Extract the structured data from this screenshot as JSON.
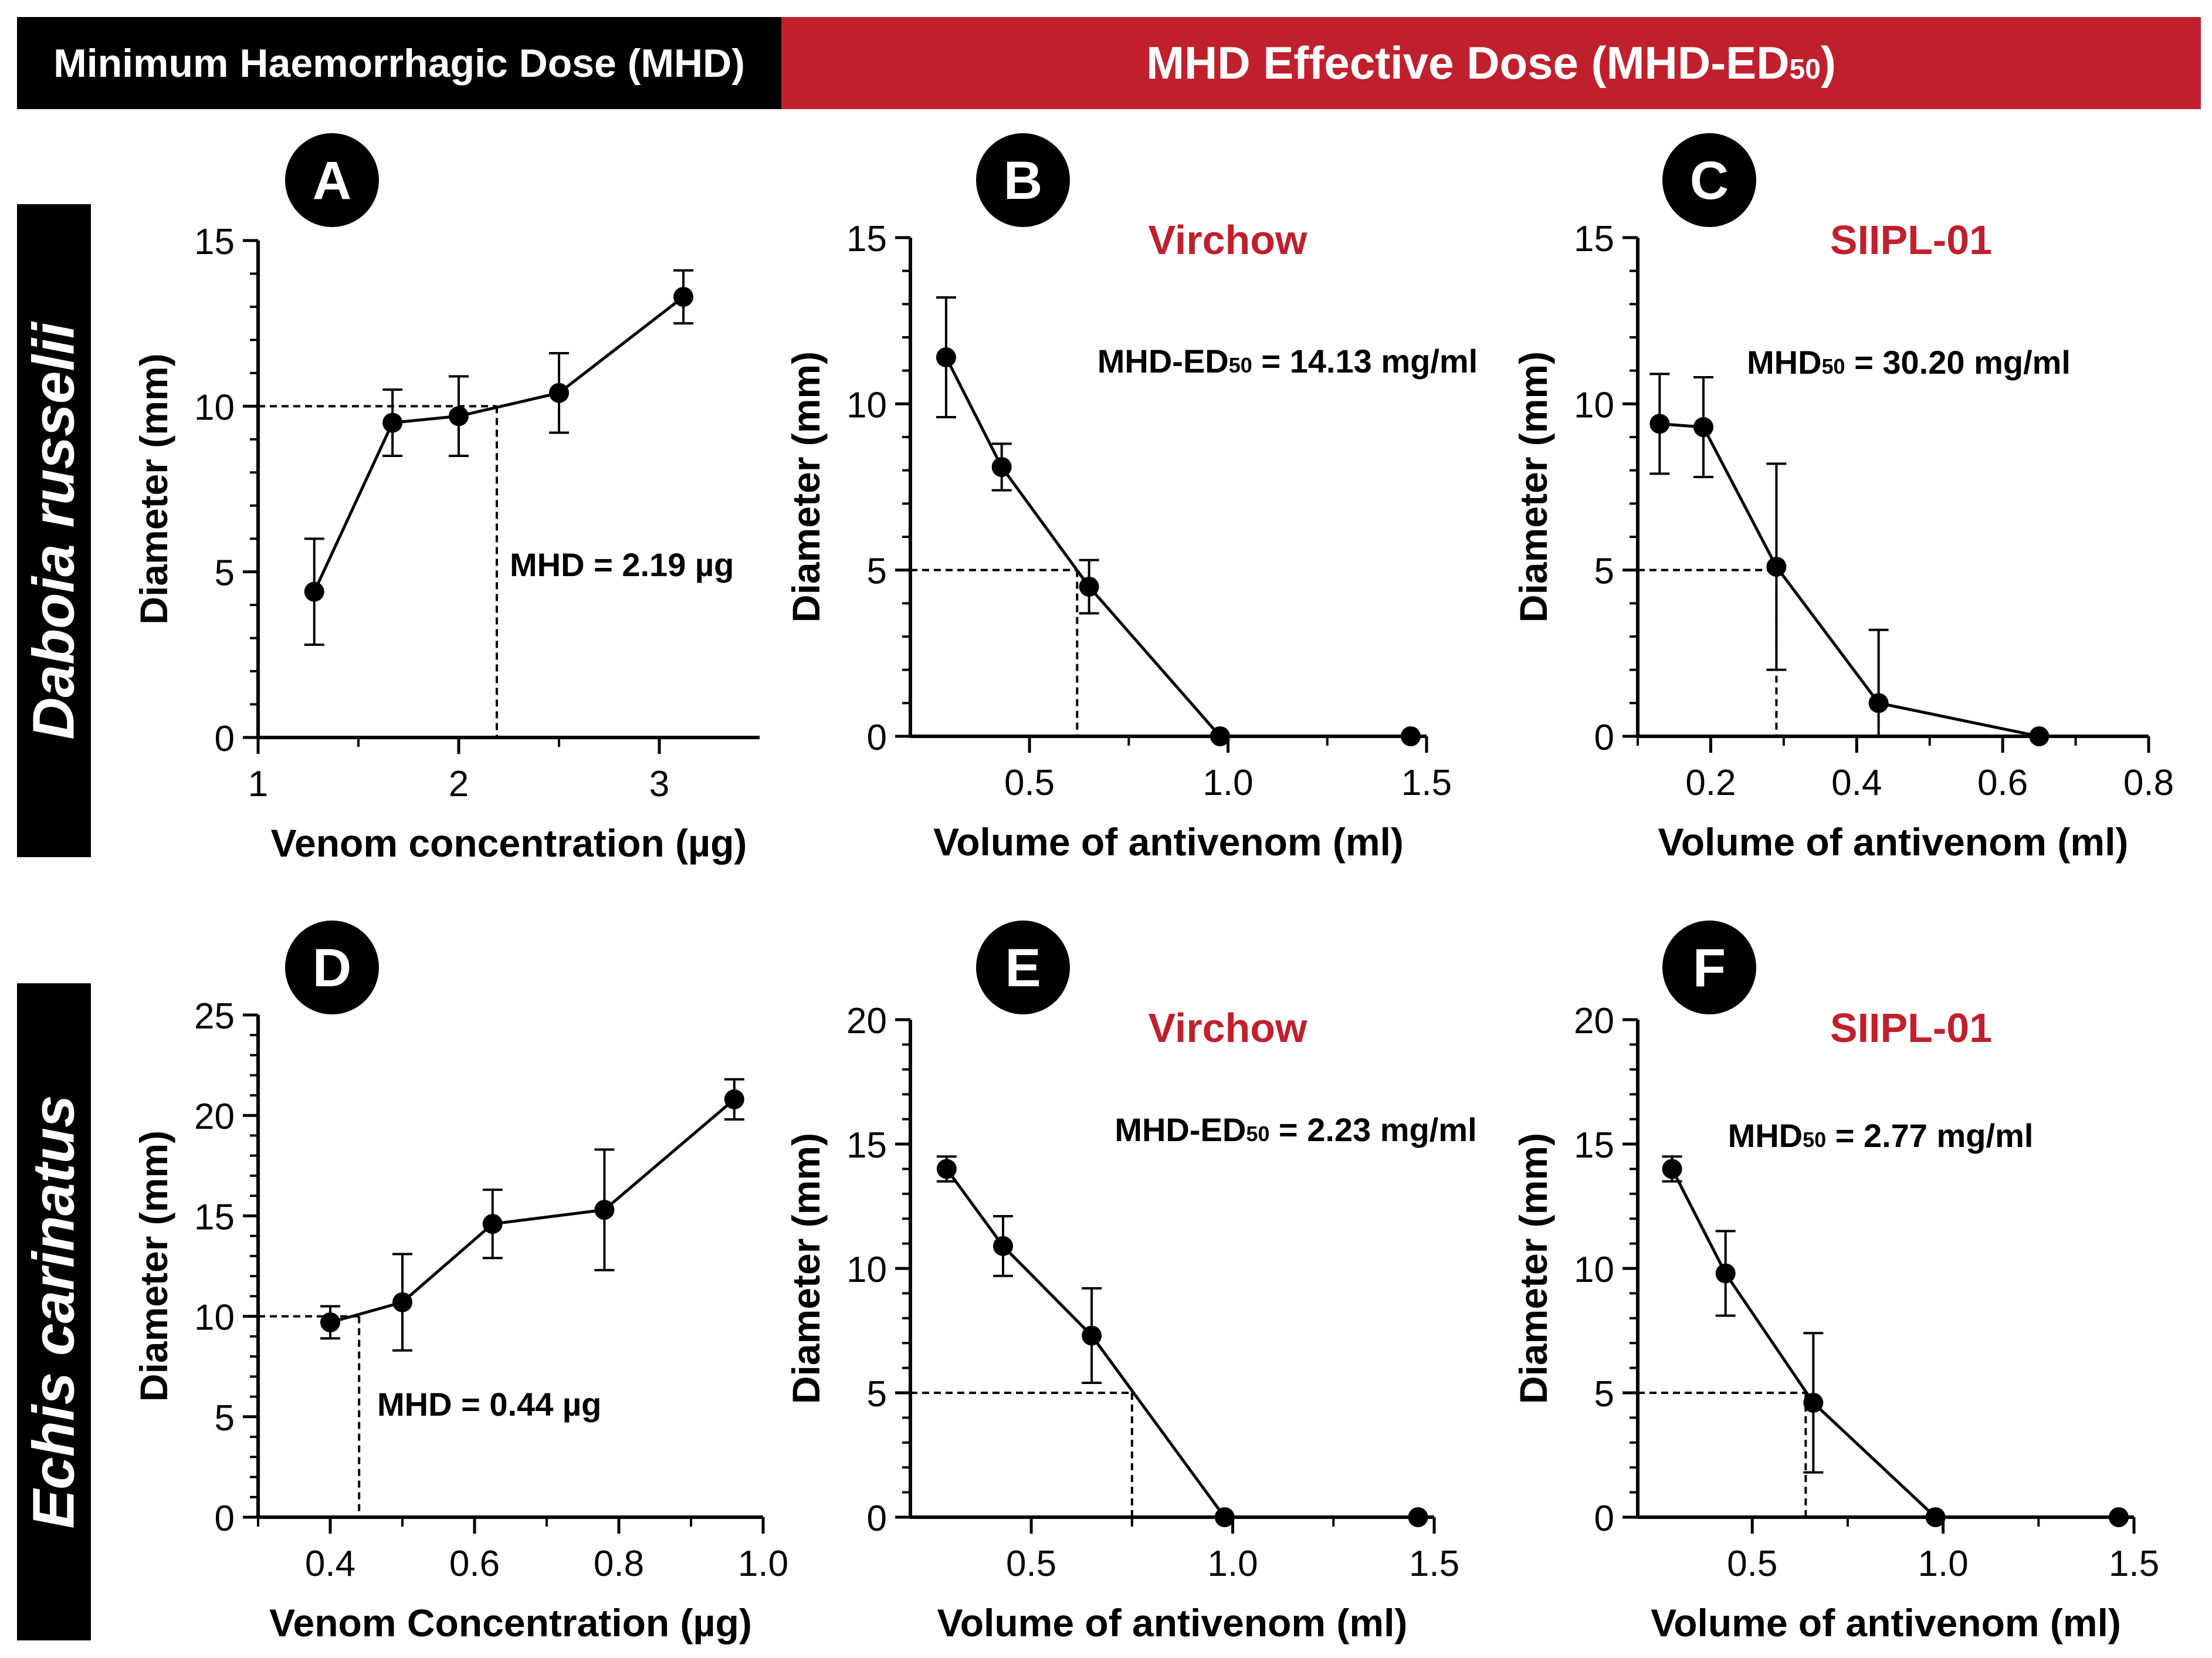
{
  "headers": {
    "left": "Minimum Haemorrhagic Dose (MHD)",
    "right_main": "MHD Effective Dose (MHD-ED",
    "right_sub": "50",
    "right_end": ")"
  },
  "species": [
    "Daboia russelii",
    "Echis carinatus"
  ],
  "colors": {
    "accent": "#c0202e",
    "ink": "#000000",
    "background": "#ffffff"
  },
  "chart_data": [
    {
      "panel": "A",
      "type": "line",
      "subtitle": "",
      "xlabel": "Venom concentration (µg)",
      "ylabel": "Diameter (mm)",
      "xlim": [
        1,
        3.5
      ],
      "ylim": [
        0,
        15
      ],
      "xticks": [
        1,
        2,
        3
      ],
      "xtick_labels": [
        "1",
        "2",
        "3"
      ],
      "xminor": [
        1.5,
        2.5
      ],
      "yticks": [
        0,
        5,
        10,
        15
      ],
      "ytick_labels": [
        "0",
        "5",
        "10",
        "15"
      ],
      "yminor_step": 1,
      "x": [
        1.28,
        1.67,
        2.0,
        2.5,
        3.12
      ],
      "y": [
        4.4,
        9.5,
        9.7,
        10.4,
        13.3
      ],
      "err": [
        1.6,
        1.0,
        1.2,
        1.2,
        0.8
      ],
      "threshold": {
        "x": 2.19,
        "y": 10
      },
      "annotation": {
        "main": "MHD = 2.19 µg",
        "sub": "",
        "rest": ""
      }
    },
    {
      "panel": "B",
      "type": "line",
      "subtitle": "Virchow",
      "xlabel": "Volume of antivenom (ml)",
      "ylabel": "Diameter (mm)",
      "xlim": [
        0.2,
        1.5
      ],
      "ylim": [
        0,
        15
      ],
      "xticks": [
        0.5,
        1.0,
        1.5
      ],
      "xtick_labels": [
        "0.5",
        "1.0",
        "1.5"
      ],
      "xminor": [
        0.75,
        1.25
      ],
      "yticks": [
        0,
        5,
        10,
        15
      ],
      "ytick_labels": [
        "0",
        "5",
        "10",
        "15"
      ],
      "yminor_step": 1,
      "x": [
        0.29,
        0.43,
        0.65,
        0.98,
        1.46
      ],
      "y": [
        11.4,
        8.1,
        4.5,
        0.0,
        0.0
      ],
      "err": [
        1.8,
        0.7,
        0.8,
        0,
        0
      ],
      "threshold": {
        "x": 0.62,
        "y": 5
      },
      "annotation": {
        "main": "MHD-ED",
        "sub": "50",
        "rest": " = 14.13 mg/ml"
      }
    },
    {
      "panel": "C",
      "type": "line",
      "subtitle": "SIIPL-01",
      "xlabel": "Volume of antivenom (ml)",
      "ylabel": "Diameter (mm)",
      "xlim": [
        0.1,
        0.8
      ],
      "ylim": [
        0,
        15
      ],
      "xticks": [
        0.2,
        0.4,
        0.6,
        0.8
      ],
      "xtick_labels": [
        "0.2",
        "0.4",
        "0.6",
        "0.8"
      ],
      "xminor": [
        0.1,
        0.3,
        0.5,
        0.7
      ],
      "yticks": [
        0,
        5,
        10,
        15
      ],
      "ytick_labels": [
        "0",
        "5",
        "10",
        "15"
      ],
      "yminor_step": 1,
      "x": [
        0.13,
        0.19,
        0.29,
        0.43,
        0.65
      ],
      "y": [
        9.4,
        9.3,
        5.1,
        1.0,
        0.0
      ],
      "err": [
        1.5,
        1.5,
        3.1,
        2.2,
        0
      ],
      "threshold": {
        "x": 0.29,
        "y": 5
      },
      "annotation": {
        "main": "MHD",
        "sub": "50",
        "rest": " = 30.20 mg/ml"
      }
    },
    {
      "panel": "D",
      "type": "line",
      "subtitle": "",
      "xlabel": "Venom Concentration (µg)",
      "ylabel": "Diameter (mm)",
      "xlim": [
        0.3,
        1.0
      ],
      "ylim": [
        0,
        25
      ],
      "xticks": [
        0.4,
        0.6,
        0.8,
        1.0
      ],
      "xtick_labels": [
        "0.4",
        "0.6",
        "0.8",
        "1.0"
      ],
      "xminor": [
        0.3,
        0.5,
        0.7,
        0.9
      ],
      "yticks": [
        0,
        5,
        10,
        15,
        20,
        25
      ],
      "ytick_labels": [
        "0",
        "5",
        "10",
        "15",
        "20",
        "25"
      ],
      "yminor_step": 1,
      "x": [
        0.4,
        0.5,
        0.625,
        0.78,
        0.96
      ],
      "y": [
        9.7,
        10.7,
        14.6,
        15.3,
        20.8
      ],
      "err": [
        0.8,
        2.4,
        1.7,
        3.0,
        1.0
      ],
      "threshold": {
        "x": 0.44,
        "y": 10
      },
      "annotation": {
        "main": "MHD = 0.44 µg",
        "sub": "",
        "rest": ""
      }
    },
    {
      "panel": "E",
      "type": "line",
      "subtitle": "Virchow",
      "xlabel": "Volume of antivenom (ml)",
      "ylabel": "Diameter (mm)",
      "xlim": [
        0.2,
        1.5
      ],
      "ylim": [
        0,
        20
      ],
      "xticks": [
        0.5,
        1.0,
        1.5
      ],
      "xtick_labels": [
        "0.5",
        "1.0",
        "1.5"
      ],
      "xminor": [
        0.75,
        1.25
      ],
      "yticks": [
        0,
        5,
        10,
        15,
        20
      ],
      "ytick_labels": [
        "0",
        "5",
        "10",
        "15",
        "20"
      ],
      "yminor_step": 1,
      "x": [
        0.29,
        0.43,
        0.65,
        0.98,
        1.46
      ],
      "y": [
        14.0,
        10.9,
        7.3,
        0.0,
        0.0
      ],
      "err": [
        0.5,
        1.2,
        1.9,
        0,
        0
      ],
      "threshold": {
        "x": 0.75,
        "y": 5
      },
      "annotation": {
        "main": "MHD-ED",
        "sub": "50",
        "rest": " = 2.23 mg/ml"
      }
    },
    {
      "panel": "F",
      "type": "line",
      "subtitle": "SIIPL-01",
      "xlabel": "Volume of antivenom (ml)",
      "ylabel": "Diameter (mm)",
      "xlim": [
        0.2,
        1.5
      ],
      "ylim": [
        0,
        20
      ],
      "xticks": [
        0.5,
        1.0,
        1.5
      ],
      "xtick_labels": [
        "0.5",
        "1.0",
        "1.5"
      ],
      "xminor": [
        0.75,
        1.25
      ],
      "yticks": [
        0,
        5,
        10,
        15,
        20
      ],
      "ytick_labels": [
        "0",
        "5",
        "10",
        "15",
        "20"
      ],
      "yminor_step": 1,
      "x": [
        0.29,
        0.43,
        0.66,
        0.98,
        1.46
      ],
      "y": [
        14.0,
        9.8,
        4.6,
        0.0,
        0.0
      ],
      "err": [
        0.5,
        1.7,
        2.8,
        0,
        0
      ],
      "threshold": {
        "x": 0.64,
        "y": 5
      },
      "annotation": {
        "main": "MHD",
        "sub": "50",
        "rest": " = 2.77 mg/ml"
      }
    }
  ]
}
